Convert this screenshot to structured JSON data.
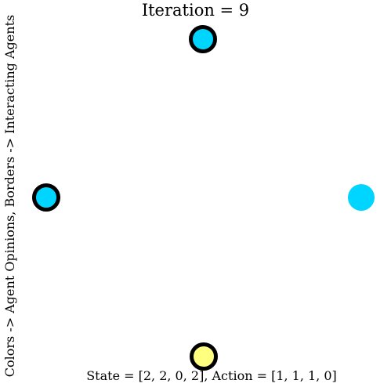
{
  "title": "Iteration = 9",
  "side_label": "Colors -> Agent Opinions, Borders -> Interacting Agents",
  "bottom_label": "State = [2, 2, 0, 2], Action = [1, 1, 1, 0]",
  "colors": {
    "opinion_cyan": "#00d5ff",
    "opinion_yellow": "#ffff7f",
    "border": "#000000"
  },
  "agents": [
    {
      "position": "top",
      "opinion_color": "#00d5ff",
      "interacting": true
    },
    {
      "position": "left",
      "opinion_color": "#00d5ff",
      "interacting": true
    },
    {
      "position": "bottom",
      "opinion_color": "#ffff7f",
      "interacting": true
    },
    {
      "position": "right",
      "opinion_color": "#00d5ff",
      "interacting": false
    }
  ]
}
